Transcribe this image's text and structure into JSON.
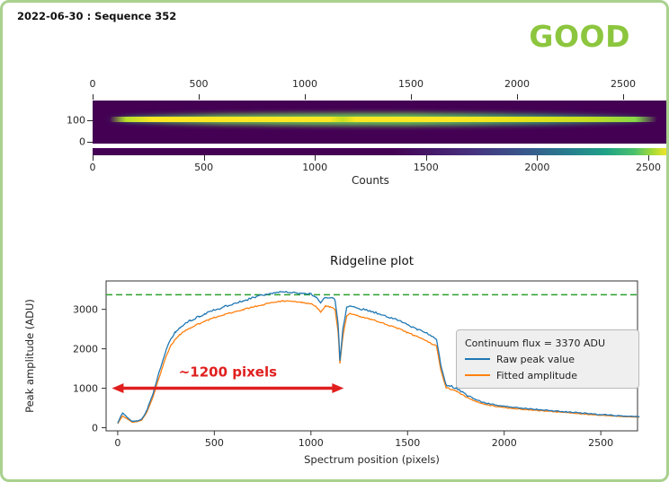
{
  "frame": {
    "border_color": "#a9d18e",
    "background": "#ffffff"
  },
  "header": {
    "title": "2022-06-30 : Sequence 352",
    "status_label": "GOOD",
    "status_color": "#8cc63e"
  },
  "spectrum_panel": {
    "top_axis_ticks": [
      "0",
      "500",
      "1000",
      "1500",
      "2000",
      "2500"
    ],
    "bottom_axis_ticks": [
      "0",
      "500",
      "1000",
      "1500",
      "2000",
      "2500"
    ],
    "y_axis_ticks": [
      "100",
      "0"
    ],
    "xlabel": "Counts",
    "colormap": "viridis",
    "colors": {
      "background": "#440154",
      "trace": "#fde725"
    }
  },
  "chart_data": {
    "type": "line",
    "title": "Ridgeline plot",
    "xlabel": "Spectrum position (pixels)",
    "ylabel": "Peak amplitude (ADU)",
    "xlim": [
      -60,
      2690
    ],
    "ylim": [
      -80,
      3720
    ],
    "x_ticks": [
      0,
      500,
      1000,
      1500,
      2000,
      2500
    ],
    "y_ticks": [
      0,
      1000,
      2000,
      3000
    ],
    "grid": false,
    "legend_position": "center right",
    "reference_line": {
      "label": "Continuum flux = 3370 ADU",
      "value": 3370,
      "color": "#2ca02c",
      "style": "dashed"
    },
    "x": [
      0,
      25,
      50,
      75,
      100,
      125,
      150,
      175,
      200,
      225,
      250,
      275,
      300,
      325,
      350,
      375,
      400,
      425,
      450,
      475,
      500,
      550,
      600,
      650,
      700,
      750,
      800,
      850,
      900,
      950,
      1000,
      1025,
      1050,
      1075,
      1100,
      1125,
      1140,
      1150,
      1165,
      1185,
      1200,
      1250,
      1300,
      1350,
      1400,
      1450,
      1500,
      1550,
      1600,
      1650,
      1675,
      1700,
      1750,
      1800,
      1850,
      1900,
      1950,
      2000,
      2100,
      2200,
      2300,
      2400,
      2500,
      2600,
      2700
    ],
    "series": [
      {
        "name": "Raw peak value",
        "color": "#1f77b4",
        "values": [
          120,
          380,
          260,
          160,
          170,
          220,
          430,
          760,
          1150,
          1560,
          1950,
          2250,
          2430,
          2540,
          2640,
          2710,
          2770,
          2830,
          2880,
          2930,
          2980,
          3060,
          3140,
          3210,
          3290,
          3360,
          3420,
          3450,
          3430,
          3400,
          3380,
          3320,
          3170,
          3320,
          3290,
          3240,
          2650,
          1720,
          2500,
          3040,
          3100,
          3020,
          2960,
          2890,
          2800,
          2720,
          2610,
          2500,
          2390,
          2260,
          1500,
          1080,
          1010,
          840,
          720,
          630,
          580,
          540,
          490,
          450,
          410,
          370,
          330,
          300,
          280
        ]
      },
      {
        "name": "Fitted amplitude",
        "color": "#ff7f0e",
        "values": [
          100,
          300,
          220,
          140,
          150,
          195,
          380,
          680,
          1040,
          1430,
          1810,
          2090,
          2260,
          2370,
          2460,
          2530,
          2590,
          2640,
          2690,
          2740,
          2790,
          2860,
          2930,
          2990,
          3060,
          3120,
          3180,
          3210,
          3200,
          3170,
          3150,
          3090,
          2940,
          3090,
          3060,
          3010,
          2450,
          1650,
          2320,
          2830,
          2890,
          2820,
          2760,
          2690,
          2600,
          2520,
          2410,
          2310,
          2200,
          2070,
          1400,
          1010,
          940,
          780,
          670,
          590,
          545,
          510,
          465,
          425,
          390,
          350,
          315,
          285,
          265
        ]
      }
    ],
    "legend_items": [
      {
        "label": "Continuum flux = 3370 ADU",
        "swatch": "none",
        "color": "#2ca02c"
      },
      {
        "label": "Raw peak value",
        "swatch": "solid",
        "color": "#1f77b4"
      },
      {
        "label": "Fitted amplitude",
        "swatch": "solid",
        "color": "#ff7f0e"
      }
    ],
    "annotation": {
      "label": "~1200 pixels",
      "color": "#e01f1f",
      "x_start": -30,
      "x_end": 1170,
      "y": 1000
    }
  }
}
